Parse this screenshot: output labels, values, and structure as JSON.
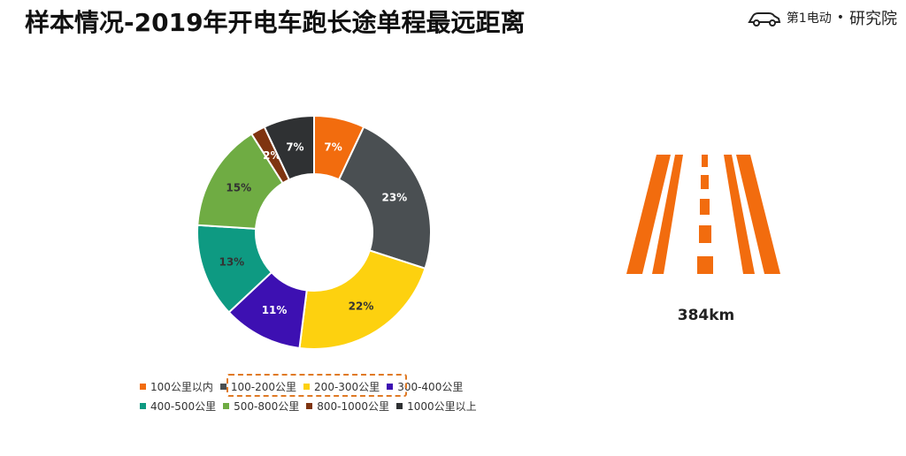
{
  "header": {
    "title": "样本情况-2019年开电车跑长途单程最远距离",
    "brand_main": "第1电动",
    "brand_sub": "研究院"
  },
  "distance_label": "384km",
  "chart_data": {
    "type": "pie",
    "donut": true,
    "legend_position": "bottom",
    "categories": [
      "100公里以内",
      "100-200公里",
      "200-300公里",
      "300-400公里",
      "400-500公里",
      "500-800公里",
      "800-1000公里",
      "1000公里以上"
    ],
    "values": [
      7,
      23,
      22,
      11,
      13,
      15,
      2,
      7
    ],
    "labels": [
      "7%",
      "23%",
      "22%",
      "11%",
      "13%",
      "15%",
      "2%",
      "7%"
    ],
    "colors": [
      "#f26c0e",
      "#4a4f52",
      "#fdd10f",
      "#3d10b2",
      "#0e9a82",
      "#6fac43",
      "#7f3410",
      "#2f3133"
    ],
    "highlighted_categories": [
      "100-200公里",
      "200-300公里"
    ]
  }
}
